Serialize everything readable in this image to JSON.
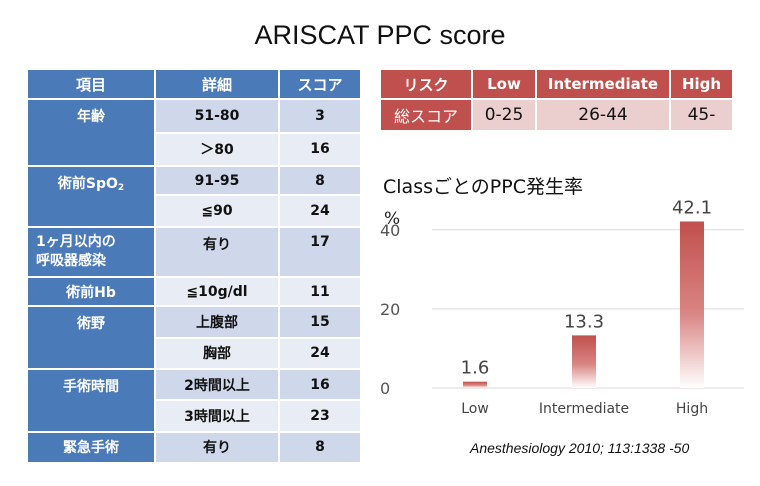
{
  "title": "ARISCAT PPC score",
  "score_table": {
    "headers": [
      "項目",
      "詳細",
      "スコア"
    ],
    "rows": [
      {
        "category": "年齢",
        "detail": "51-80",
        "score": "3"
      },
      {
        "category": "",
        "detail": "＞80",
        "score": "16"
      },
      {
        "category": "術前SpO",
        "category_sub": "2",
        "detail": "91-95",
        "score": "8"
      },
      {
        "category": "",
        "detail": "≦90",
        "score": "24"
      },
      {
        "category_line1": "1ヶ月以内の",
        "category_line2": "呼吸器感染",
        "detail": "有り",
        "score": "17"
      },
      {
        "category": "術前Hb",
        "detail": "≦10g/dl",
        "score": "11"
      },
      {
        "category": "術野",
        "detail": "上腹部",
        "score": "15"
      },
      {
        "category": "",
        "detail": "胸部",
        "score": "24"
      },
      {
        "category": "手術時間",
        "detail": "2時間以上",
        "score": "16"
      },
      {
        "category": "",
        "detail": "3時間以上",
        "score": "23"
      },
      {
        "category": "緊急手術",
        "detail": "有り",
        "score": "8"
      }
    ]
  },
  "risk_table": {
    "headers": [
      "リスク",
      "Low",
      "Intermediate",
      "High"
    ],
    "row_label": "総スコア",
    "ranges": [
      "0-25",
      "26-44",
      "45-"
    ]
  },
  "chart_title": "ClassごとのPPC発生率",
  "chart_data": {
    "type": "bar",
    "title": "ClassごとのPPC発生率",
    "ylabel": "%",
    "categories": [
      "Low",
      "Intermediate",
      "High"
    ],
    "values": [
      1.6,
      13.3,
      42.1
    ],
    "data_labels": [
      "1.6",
      "13.3",
      "42.1"
    ],
    "yticks": [
      0,
      20,
      40
    ],
    "ylim": [
      0,
      45
    ],
    "grid": true,
    "bar_color": "#c0504d"
  },
  "citation": "Anesthesiology 2010; 113:1338 -50"
}
